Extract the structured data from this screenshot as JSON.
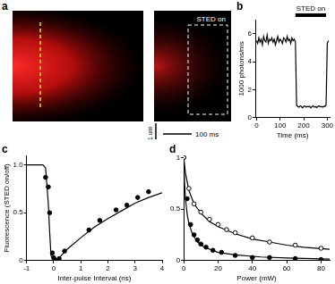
{
  "chart_data": [
    {
      "type": "image",
      "panel": "a",
      "annotations": [
        "STED on",
        "1 um",
        "100 ms"
      ]
    },
    {
      "type": "line",
      "panel": "b",
      "x_label": "Time (ms)",
      "y_label": "1000 photons/ms",
      "xlim": [
        -5,
        310
      ],
      "xticks": [
        0,
        100,
        200,
        300
      ],
      "ylim": [
        0,
        7
      ],
      "yticks": [
        0,
        2,
        4,
        6
      ],
      "grid": false,
      "annotations": [
        {
          "text": "STED on",
          "x": [
            165,
            295
          ]
        }
      ],
      "series": [
        {
          "color": "#000000",
          "marker": "none",
          "line_style": "solid",
          "x": [
            0,
            5,
            10,
            15,
            20,
            25,
            30,
            35,
            40,
            45,
            50,
            55,
            60,
            65,
            70,
            75,
            80,
            85,
            90,
            95,
            100,
            105,
            110,
            115,
            120,
            125,
            130,
            135,
            140,
            145,
            150,
            155,
            160,
            165,
            170,
            175,
            180,
            185,
            190,
            195,
            200,
            205,
            210,
            215,
            220,
            225,
            230,
            235,
            240,
            245,
            250,
            255,
            260,
            265,
            270,
            275,
            280,
            285,
            290,
            295,
            300,
            305
          ],
          "values": [
            5.5,
            5.3,
            5.7,
            5.4,
            5.6,
            5.2,
            5.8,
            5.5,
            5.4,
            5.9,
            5.3,
            5.6,
            5.5,
            5.7,
            5.4,
            5.6,
            5.2,
            5.5,
            5.8,
            5.4,
            5.6,
            5.5,
            5.3,
            5.7,
            5.6,
            5.4,
            5.8,
            5.5,
            5.6,
            5.3,
            5.7,
            5.5,
            5.6,
            5.4,
            0.9,
            0.8,
            0.75,
            0.85,
            0.8,
            0.7,
            0.8,
            0.85,
            0.75,
            0.8,
            0.78,
            0.82,
            0.7,
            0.8,
            0.85,
            0.75,
            0.8,
            0.72,
            0.8,
            0.85,
            0.78,
            0.8,
            0.75,
            0.82,
            0.8,
            0.9,
            5.3,
            5.5
          ]
        }
      ]
    },
    {
      "type": "scatter",
      "panel": "c",
      "x_label": "Inter-pulse Interval (ns)",
      "y_label": "Fluorescence (STED on/off)",
      "xlim": [
        -1,
        4
      ],
      "xticks": [
        -1,
        0,
        1,
        2,
        3,
        4
      ],
      "ylim": [
        0,
        1.1
      ],
      "yticks": [
        0,
        0.5,
        {
          "value": 1,
          "label": "1.0"
        }
      ],
      "grid": false,
      "series": [
        {
          "color": "#000000",
          "marker": "circle",
          "line_style": "none",
          "x": [
            -0.3,
            -0.2,
            -0.15,
            -0.05,
            0,
            0.1,
            0.2,
            0.4,
            1.3,
            1.7,
            2.3,
            2.7,
            3.1,
            3.5
          ],
          "values": [
            0.87,
            0.77,
            0.5,
            0.08,
            0.03,
            0.0,
            0.02,
            0.1,
            0.32,
            0.42,
            0.53,
            0.58,
            0.66,
            0.72
          ]
        },
        {
          "color": "#000000",
          "marker": "none",
          "line_style": "solid",
          "x": [
            -1,
            -0.4,
            -0.3,
            -0.2,
            -0.15,
            -0.1,
            0,
            0.1,
            0.5,
            1,
            1.5,
            2,
            2.5,
            3,
            3.5,
            4
          ],
          "values": [
            1.0,
            1.0,
            0.97,
            0.6,
            0.3,
            0.05,
            0.0,
            0.0,
            0.12,
            0.24,
            0.35,
            0.44,
            0.52,
            0.6,
            0.66,
            0.71
          ]
        }
      ]
    },
    {
      "type": "scatter",
      "panel": "d",
      "x_label": "Power (mW)",
      "xlim": [
        0,
        85
      ],
      "xticks": [
        0,
        20,
        40,
        60,
        80
      ],
      "ylim": [
        0,
        1.02
      ],
      "yticks": [
        0,
        0.5,
        1
      ],
      "grid": false,
      "series": [
        {
          "color": "#000000",
          "marker": "open_circle",
          "line_style": "none",
          "x": [
            0,
            3,
            6,
            10,
            15,
            20,
            25,
            30,
            40,
            50,
            65,
            80
          ],
          "values": [
            1.0,
            0.7,
            0.55,
            0.47,
            0.4,
            0.35,
            0.3,
            0.27,
            0.22,
            0.18,
            0.15,
            0.12
          ]
        },
        {
          "color": "#000000",
          "marker": "none",
          "line_style": "solid",
          "x": [
            0,
            1,
            3,
            6,
            10,
            15,
            20,
            30,
            40,
            50,
            60,
            70,
            85
          ],
          "values": [
            1.0,
            0.85,
            0.68,
            0.55,
            0.46,
            0.38,
            0.33,
            0.26,
            0.21,
            0.18,
            0.15,
            0.13,
            0.11
          ]
        },
        {
          "color": "#000000",
          "marker": "circle",
          "line_style": "none",
          "x": [
            0,
            2,
            4,
            6,
            8,
            10,
            13,
            17,
            22,
            30,
            40,
            50,
            65,
            80
          ],
          "values": [
            1.0,
            0.6,
            0.35,
            0.25,
            0.2,
            0.16,
            0.13,
            0.1,
            0.08,
            0.05,
            0.03,
            0.03,
            0.02,
            0.01
          ]
        },
        {
          "color": "#000000",
          "marker": "none",
          "line_style": "solid",
          "x": [
            0,
            0.5,
            1,
            2,
            3,
            5,
            8,
            12,
            20,
            30,
            45,
            60,
            85
          ],
          "values": [
            1.0,
            0.75,
            0.6,
            0.45,
            0.36,
            0.26,
            0.18,
            0.13,
            0.08,
            0.055,
            0.035,
            0.025,
            0.015
          ]
        }
      ]
    }
  ]
}
